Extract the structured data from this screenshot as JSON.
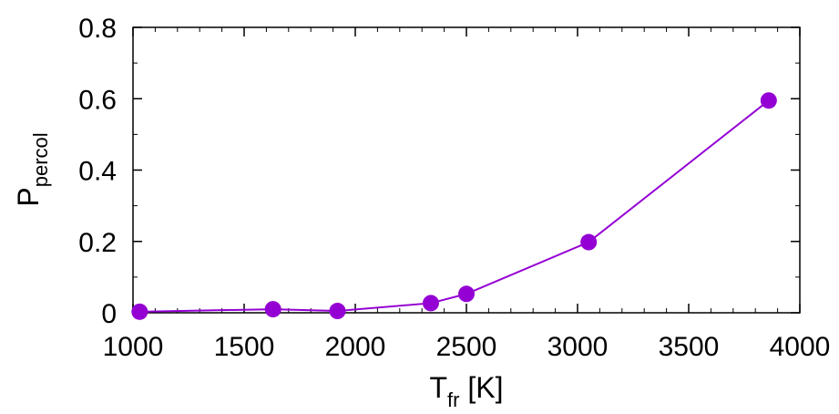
{
  "chart_data": {
    "type": "line",
    "x": [
      1030,
      1630,
      1920,
      2340,
      2500,
      3050,
      3860
    ],
    "y": [
      0.003,
      0.01,
      0.005,
      0.027,
      0.053,
      0.198,
      0.595
    ],
    "xlim": [
      1000,
      4000
    ],
    "ylim": [
      0,
      0.8
    ],
    "x_ticks": [
      1000,
      1500,
      2000,
      2500,
      3000,
      3500,
      4000
    ],
    "y_ticks": [
      0,
      0.2,
      0.4,
      0.6,
      0.8
    ],
    "x_tick_labels": [
      "1000",
      "1500",
      "2000",
      "2500",
      "3000",
      "3500",
      "4000"
    ],
    "y_tick_labels": [
      "0",
      "0.2",
      "0.4",
      "0.6",
      "0.8"
    ],
    "xlabel": {
      "main": "T",
      "sub": "fr",
      "suffix": " [K]"
    },
    "ylabel": {
      "main": "P",
      "sub": "percol"
    },
    "grid": false,
    "marker": "circle",
    "color": "#9400d3"
  }
}
